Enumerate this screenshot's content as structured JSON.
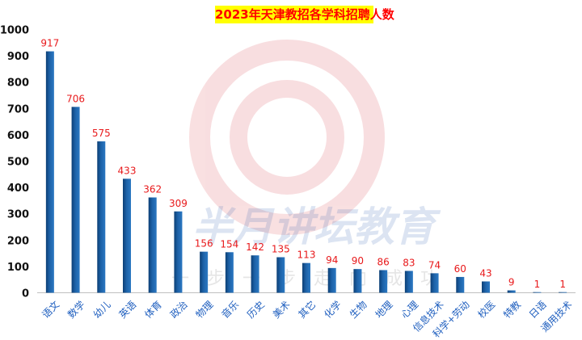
{
  "chart_data": {
    "type": "bar",
    "title": "2023年天津教招各学科招聘人数",
    "categories": [
      "语文",
      "数学",
      "幼儿",
      "英语",
      "体育",
      "政治",
      "物理",
      "音乐",
      "历史",
      "美术",
      "其它",
      "化学",
      "生物",
      "地理",
      "心理",
      "信息技术",
      "科学+劳动",
      "校医",
      "特教",
      "日语",
      "通用技术"
    ],
    "values": [
      917,
      706,
      575,
      433,
      362,
      309,
      156,
      154,
      142,
      135,
      113,
      94,
      90,
      86,
      83,
      74,
      60,
      43,
      9,
      1,
      1
    ],
    "ylim": [
      0,
      1000
    ],
    "yticks": [
      0,
      100,
      200,
      300,
      400,
      500,
      600,
      700,
      800,
      900,
      1000
    ],
    "grid": false,
    "legend": "none",
    "colors": {
      "bar": "#1d62a8",
      "bar_dark": "#0c3f75",
      "data_label": "#e8191b",
      "category_label": "#1f5fbf",
      "title_bg": "#ffff00",
      "title_text": "#ff0000"
    }
  },
  "watermark": {
    "text": "半月讲坛教育",
    "slogan": "一步一步走向成功"
  }
}
